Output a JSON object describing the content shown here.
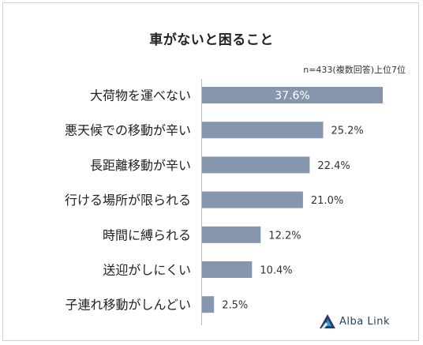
{
  "chart_data": {
    "type": "bar",
    "orientation": "horizontal",
    "title": "車がないと困ること",
    "note": "n=433(複数回答)上位7位",
    "categories": [
      "大荷物を運べない",
      "悪天候での移動が辛い",
      "長距離移動が辛い",
      "行ける場所が限られる",
      "時間に縛られる",
      "送迎がしにくい",
      "子連れ移動がしんどい"
    ],
    "values": [
      37.6,
      25.2,
      22.4,
      21.0,
      12.2,
      10.4,
      2.5
    ],
    "value_labels": [
      "37.6%",
      "25.2%",
      "22.4%",
      "21.0%",
      "12.2%",
      "10.4%",
      "2.5%"
    ],
    "xlim": [
      0,
      40
    ],
    "grid": false,
    "bar_color": "#8696ac",
    "label_inside_color": "#ffffff",
    "label_outside_color": "#333333"
  },
  "logo": {
    "text": "Alba Link",
    "color": "#2a3f66",
    "accent": "#2f9be0",
    "icon": "alba-link-triangle-icon"
  }
}
